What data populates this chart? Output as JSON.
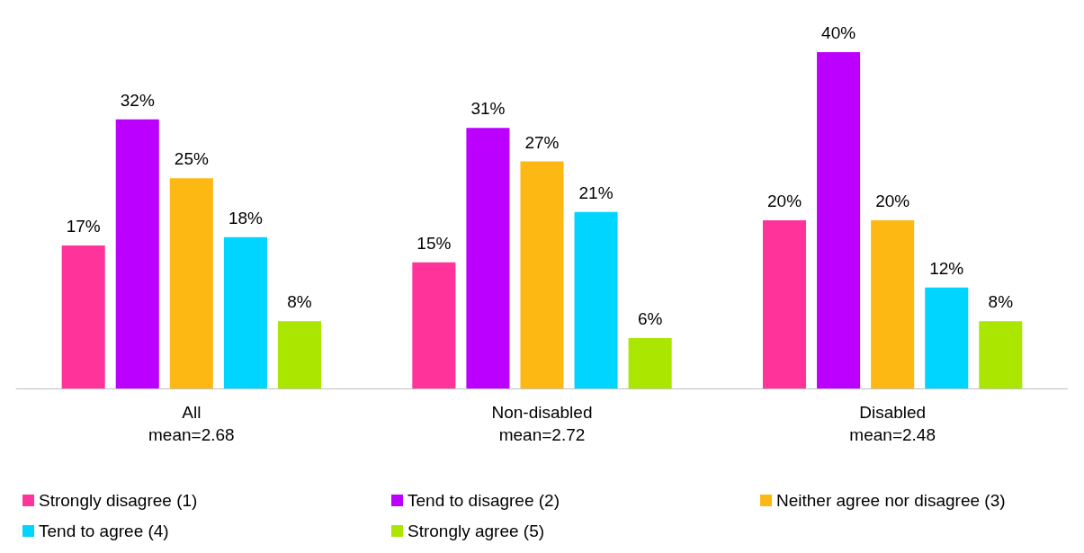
{
  "chart_data": {
    "type": "bar",
    "categories": [
      "All\nmean=2.68",
      "Non-disabled\nmean=2.72",
      "Disabled\nmean=2.48"
    ],
    "series": [
      {
        "name": "Strongly disagree (1)",
        "color": "#ff3399",
        "values": [
          17,
          15,
          20
        ],
        "value_labels": [
          "17%",
          "15%",
          "20%"
        ]
      },
      {
        "name": "Tend to disagree (2)",
        "color": "#bb00ff",
        "values": [
          32,
          31,
          40
        ],
        "value_labels": [
          "32%",
          "31%",
          "40%"
        ]
      },
      {
        "name": "Neither agree nor disagree (3)",
        "color": "#fdb813",
        "values": [
          25,
          27,
          20
        ],
        "value_labels": [
          "25%",
          "27%",
          "20%"
        ]
      },
      {
        "name": "Tend to agree (4)",
        "color": "#00d5ff",
        "values": [
          18,
          21,
          12
        ],
        "value_labels": [
          "18%",
          "21%",
          "12%"
        ]
      },
      {
        "name": "Strongly agree (5)",
        "color": "#aae600",
        "values": [
          8,
          6,
          8
        ],
        "value_labels": [
          "8%",
          "6%",
          "8%"
        ]
      }
    ],
    "legend": "bottom",
    "tick_labels": "x"
  }
}
